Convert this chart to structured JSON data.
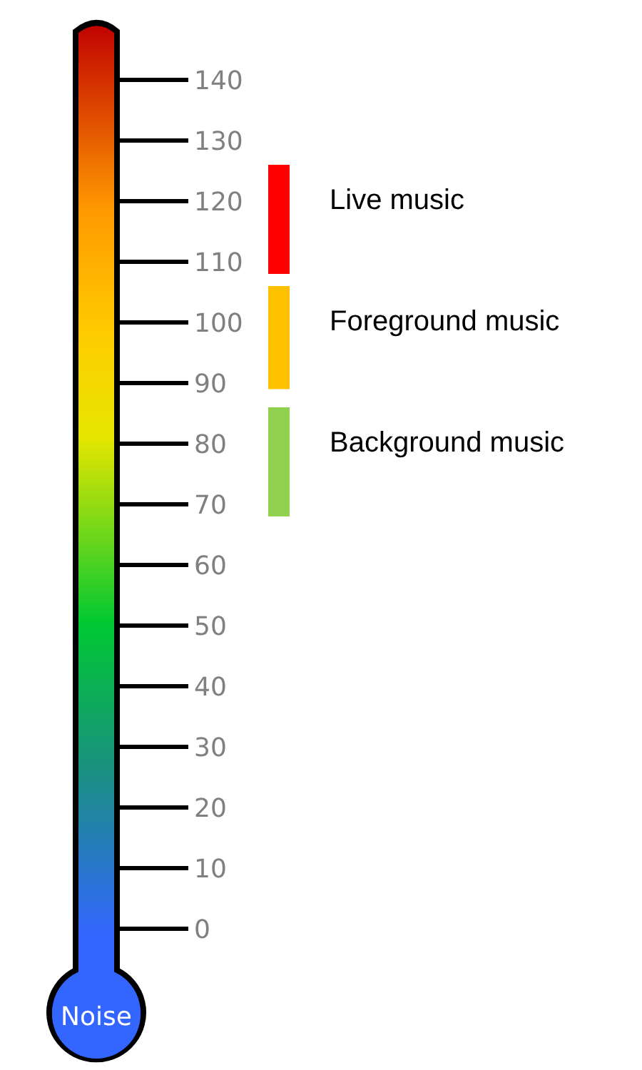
{
  "chart_data": {
    "type": "bar",
    "ylabel": "Noise",
    "categories": [
      null
    ],
    "series": [
      {
        "name": "Live music",
        "color": "#ff0000",
        "values": [
          18
        ],
        "base": [
          108
        ]
      },
      {
        "name": "Foreground music",
        "color": "#ffc000",
        "values": [
          17
        ],
        "base": [
          89
        ]
      },
      {
        "name": "Background music",
        "color": "#92d050",
        "values": [
          18
        ],
        "base": [
          68
        ]
      }
    ],
    "ylim": [
      0,
      140
    ],
    "yticks": [
      0,
      10,
      20,
      30,
      40,
      50,
      60,
      70,
      80,
      90,
      100,
      110,
      120,
      130,
      140
    ]
  }
}
